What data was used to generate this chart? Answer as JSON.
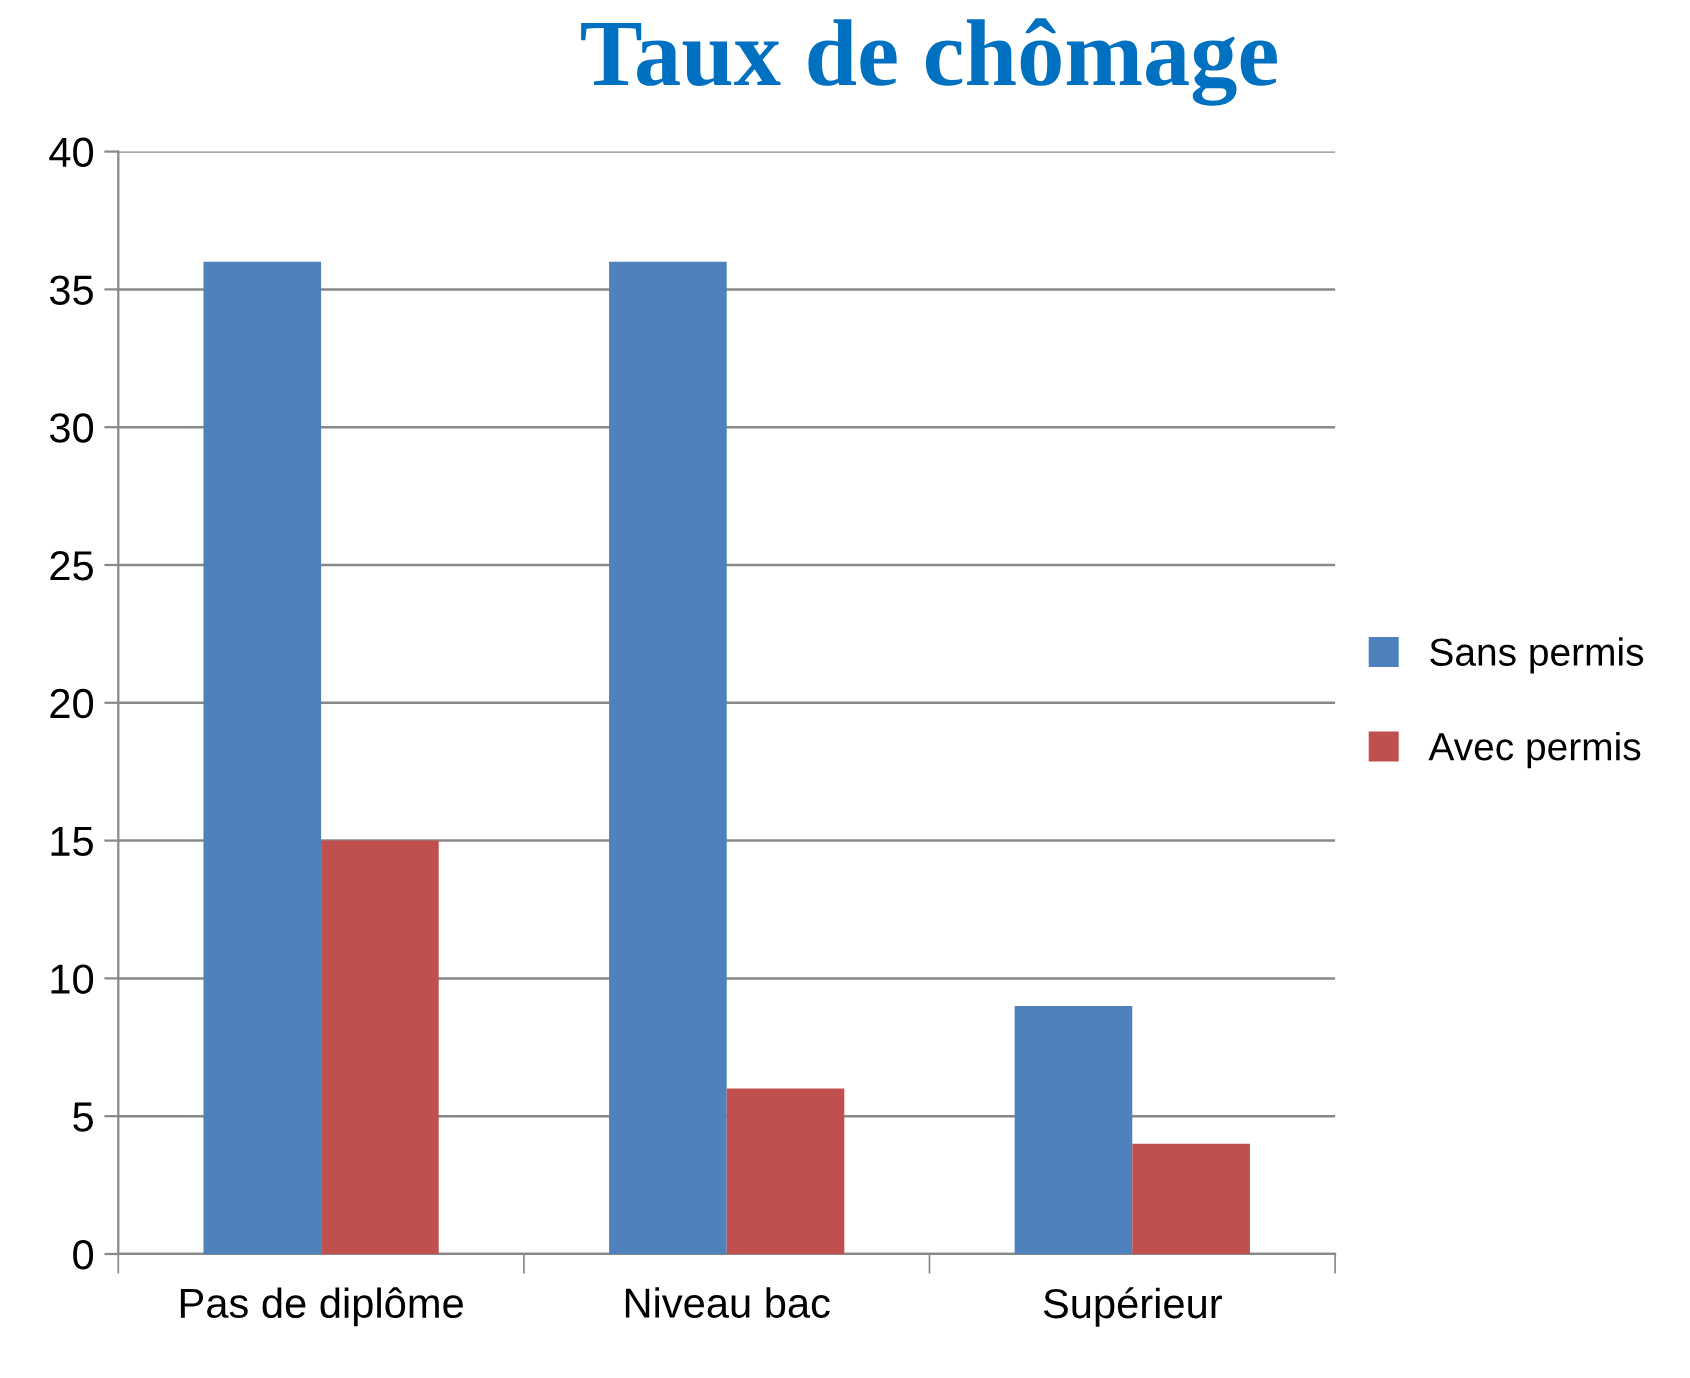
{
  "chart_data": {
    "type": "bar",
    "title": "Taux de chômage",
    "categories": [
      "Pas de diplôme",
      "Niveau bac",
      "Supérieur"
    ],
    "series": [
      {
        "name": "Sans permis",
        "color": "#4f81bd",
        "values": [
          36,
          36,
          9
        ]
      },
      {
        "name": "Avec permis",
        "color": "#c0504d",
        "values": [
          15,
          6,
          4
        ]
      }
    ],
    "ylim": [
      0,
      40
    ],
    "yticks": [
      0,
      5,
      10,
      15,
      20,
      25,
      30,
      35,
      40
    ],
    "grid": "y",
    "legend": "right"
  }
}
